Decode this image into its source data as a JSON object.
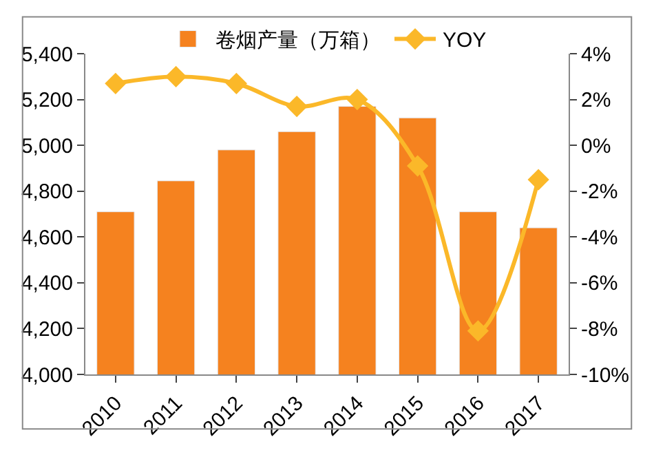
{
  "chart_data": {
    "type": "bar",
    "categories": [
      "2010",
      "2011",
      "2012",
      "2013",
      "2014",
      "2015",
      "2016",
      "2017"
    ],
    "series": [
      {
        "name": "卷烟产量（万箱）",
        "color": "#f5821f",
        "values": [
          4710,
          4845,
          4980,
          5060,
          5170,
          5120,
          4710,
          4640
        ]
      },
      {
        "name": "YOY",
        "type": "line",
        "axis": "y2",
        "color": "#fbb829",
        "marker": "diamond",
        "values": [
          2.7,
          3.0,
          2.7,
          1.7,
          2.0,
          -0.9,
          -8.1,
          -1.5
        ]
      }
    ],
    "ylim": [
      4000,
      5400
    ],
    "yticks": [
      {
        "value": 4000,
        "label": "4,000"
      },
      {
        "value": 4200,
        "label": "4,200"
      },
      {
        "value": 4400,
        "label": "4,400"
      },
      {
        "value": 4600,
        "label": "4,600"
      },
      {
        "value": 4800,
        "label": "4,800"
      },
      {
        "value": 5000,
        "label": "5,000"
      },
      {
        "value": 5200,
        "label": "5,200"
      },
      {
        "value": 5400,
        "label": "5,400"
      }
    ],
    "y2lim": [
      -10,
      4
    ],
    "y2ticks": [
      {
        "value": -10,
        "label": "-10%"
      },
      {
        "value": -8,
        "label": "-8%"
      },
      {
        "value": -6,
        "label": "-6%"
      },
      {
        "value": -4,
        "label": "-4%"
      },
      {
        "value": -2,
        "label": "-2%"
      },
      {
        "value": 0,
        "label": "0%"
      },
      {
        "value": 2,
        "label": "2%"
      },
      {
        "value": 4,
        "label": "4%"
      }
    ],
    "legend": "top"
  }
}
